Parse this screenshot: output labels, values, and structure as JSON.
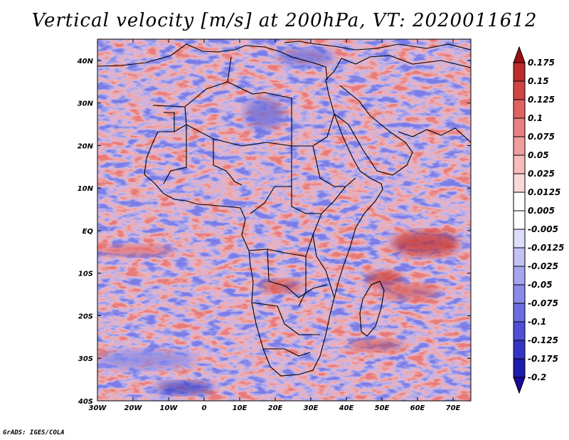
{
  "title": "Vertical velocity [m/s] at 200hPa, VT: 2020011612",
  "footer": "GrADS: IGES/COLA",
  "map": {
    "region": "Africa",
    "lon_range": [
      -30,
      75
    ],
    "lat_range": [
      -40,
      45
    ],
    "lon_ticks": [
      {
        "value": -30,
        "label": "30W"
      },
      {
        "value": -20,
        "label": "20W"
      },
      {
        "value": -10,
        "label": "10W"
      },
      {
        "value": 0,
        "label": "0"
      },
      {
        "value": 10,
        "label": "10E"
      },
      {
        "value": 20,
        "label": "20E"
      },
      {
        "value": 30,
        "label": "30E"
      },
      {
        "value": 40,
        "label": "40E"
      },
      {
        "value": 50,
        "label": "50E"
      },
      {
        "value": 60,
        "label": "60E"
      },
      {
        "value": 70,
        "label": "70E"
      }
    ],
    "lat_ticks": [
      {
        "value": 40,
        "label": "40N"
      },
      {
        "value": 30,
        "label": "30N"
      },
      {
        "value": 20,
        "label": "20N"
      },
      {
        "value": 10,
        "label": "10N"
      },
      {
        "value": 0,
        "label": "EQ"
      },
      {
        "value": -10,
        "label": "10S"
      },
      {
        "value": -20,
        "label": "20S"
      },
      {
        "value": -30,
        "label": "30S"
      },
      {
        "value": -40,
        "label": "40S"
      }
    ]
  },
  "colorbar": {
    "levels": [
      {
        "label": "0.175",
        "color": "#a91a1a"
      },
      {
        "label": "0.15",
        "color": "#bd2a2a"
      },
      {
        "label": "0.125",
        "color": "#d14444"
      },
      {
        "label": "0.1",
        "color": "#e06262"
      },
      {
        "label": "0.075",
        "color": "#ea8080"
      },
      {
        "label": "0.05",
        "color": "#f19e9e"
      },
      {
        "label": "0.025",
        "color": "#f7bcbc"
      },
      {
        "label": "0.0125",
        "color": "#fbd8d8"
      },
      {
        "label": "0.005",
        "color": "#ffffff"
      },
      {
        "label": "-0.005",
        "color": "#ffffff"
      },
      {
        "label": "-0.0125",
        "color": "#dcdcfb"
      },
      {
        "label": "-0.025",
        "color": "#c2c2f6"
      },
      {
        "label": "-0.05",
        "color": "#a6a6f0"
      },
      {
        "label": "-0.075",
        "color": "#8a8aea"
      },
      {
        "label": "-0.1",
        "color": "#6c6ce2"
      },
      {
        "label": "-0.125",
        "color": "#5050d6"
      },
      {
        "label": "-0.175",
        "color": "#3434c4"
      },
      {
        "label": "-0.2",
        "color": "#1c1cac"
      }
    ],
    "top_color": "#9a1010",
    "bottom_color": "#1a0a9a"
  }
}
